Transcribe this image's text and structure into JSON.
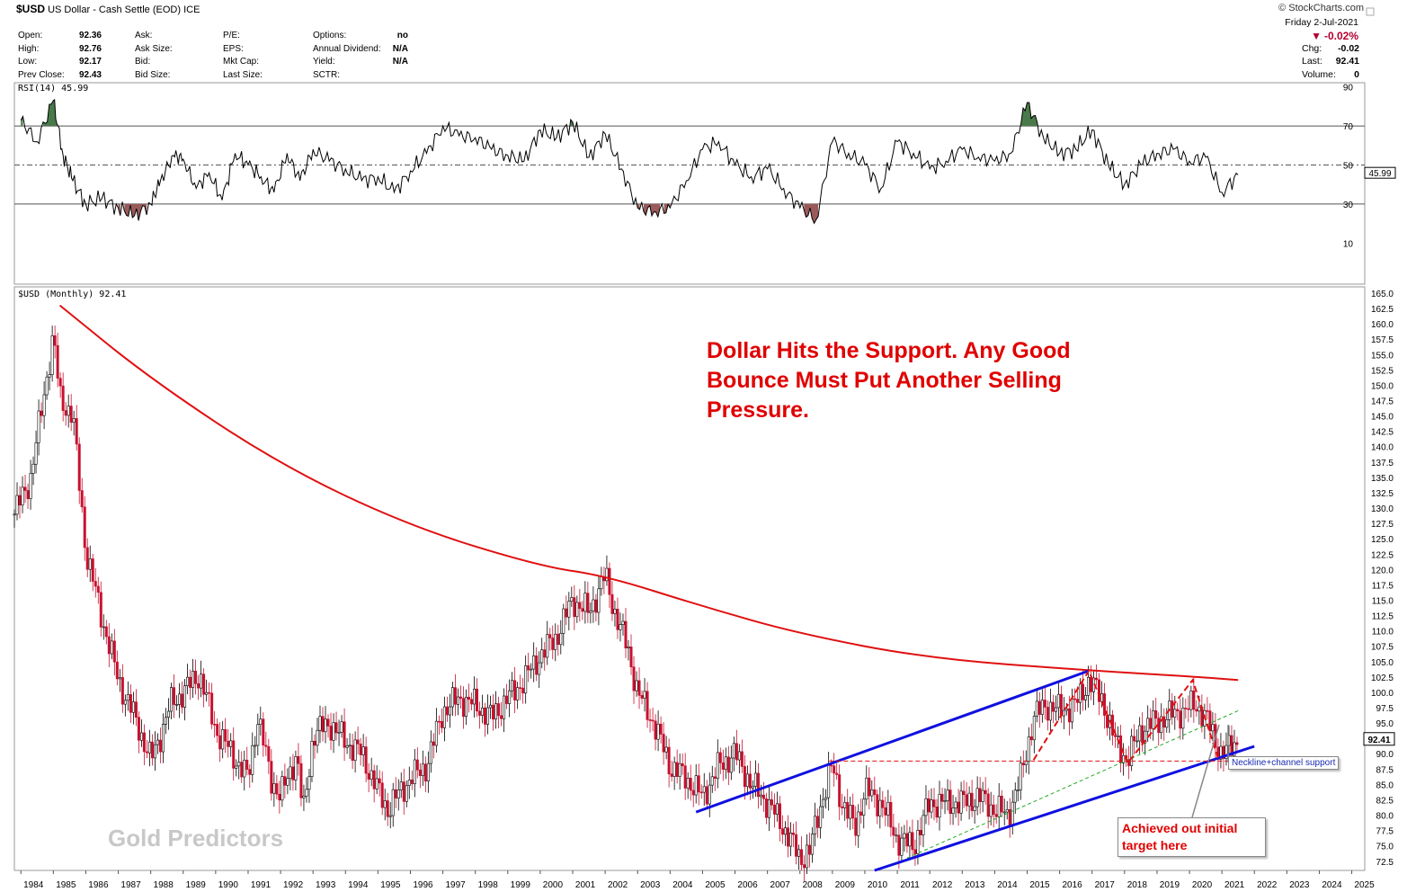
{
  "header": {
    "symbol": "$USD",
    "name": "US Dollar - Cash Settle (EOD)",
    "exchange": "ICE",
    "brand": "© StockCharts.com",
    "date": "Friday   2-Jul-2021"
  },
  "quote": {
    "open_label": "Open:",
    "open": "92.36",
    "high_label": "High:",
    "high": "92.76",
    "low_label": "Low:",
    "low": "92.17",
    "prev_label": "Prev Close:",
    "prev": "92.43",
    "ask_label": "Ask:",
    "asksize_label": "Ask Size:",
    "bid_label": "Bid:",
    "bidsize_label": "Bid Size:",
    "pe_label": "P/E:",
    "eps_label": "EPS:",
    "mktcap_label": "Mkt Cap:",
    "lastsize_label": "Last Size:",
    "options_label": "Options:",
    "options": "no",
    "div_label": "Annual Dividend:",
    "div": "N/A",
    "yield_label": "Yield:",
    "yield": "N/A",
    "sctr_label": "SCTR:",
    "chg_pct": "-0.02%",
    "chg_label": "Chg:",
    "chg": "-0.02",
    "last_label": "Last:",
    "last": "92.41",
    "vol_label": "Volume:",
    "vol": "0"
  },
  "colors": {
    "up": "#000000",
    "down": "#c8102e",
    "trend_red": "#e01010",
    "channel_blue": "#1010e0",
    "dashed_green": "#22aa22",
    "rsi_over": "#4a7a4a",
    "rsi_under": "#9a5a5a"
  },
  "annotations": {
    "headline": [
      "Dollar Hits the Support. Any Good",
      "Bounce Must Put Another Selling",
      "Pressure."
    ],
    "watermark": "Gold Predictors",
    "callout_target": [
      "Achieved out initial",
      "target here"
    ],
    "callout_support": "Neckline+channel support"
  },
  "chart_data": [
    {
      "type": "line",
      "title": "RSI(14) 45.99",
      "ylim": [
        0,
        100
      ],
      "y_ticks": [
        10,
        30,
        50,
        70,
        90
      ],
      "reference_lines": [
        30,
        50,
        70
      ],
      "last_value": "45.99",
      "x": [
        1984.0,
        1984.5,
        1985.0,
        1985.3,
        1985.6,
        1986.0,
        1986.5,
        1987.0,
        1987.5,
        1988.0,
        1988.3,
        1988.7,
        1989.0,
        1989.4,
        1989.8,
        1990.2,
        1990.6,
        1991.0,
        1991.4,
        1991.8,
        1992.2,
        1992.6,
        1993.0,
        1993.5,
        1994.0,
        1994.5,
        1995.0,
        1995.5,
        1996.0,
        1996.5,
        1997.0,
        1997.5,
        1998.0,
        1998.5,
        1999.0,
        1999.5,
        2000.0,
        2000.5,
        2001.0,
        2001.5,
        2002.0,
        2002.5,
        2003.0,
        2003.5,
        2004.0,
        2004.5,
        2005.0,
        2005.5,
        2006.0,
        2006.5,
        2007.0,
        2007.5,
        2008.0,
        2008.5,
        2009.0,
        2009.5,
        2010.0,
        2010.5,
        2011.0,
        2011.5,
        2012.0,
        2012.5,
        2013.0,
        2013.5,
        2014.0,
        2014.5,
        2015.0,
        2015.5,
        2016.0,
        2016.5,
        2017.0,
        2017.5,
        2018.0,
        2018.5,
        2019.0,
        2019.5,
        2020.0,
        2020.5,
        2021.0,
        2021.5
      ],
      "values": [
        73,
        62,
        83,
        55,
        42,
        30,
        33,
        28,
        24,
        30,
        42,
        55,
        53,
        38,
        46,
        32,
        56,
        50,
        44,
        36,
        56,
        42,
        58,
        52,
        48,
        42,
        44,
        36,
        47,
        56,
        70,
        65,
        64,
        58,
        55,
        52,
        68,
        64,
        72,
        54,
        66,
        48,
        28,
        26,
        28,
        42,
        58,
        62,
        50,
        44,
        48,
        38,
        28,
        22,
        62,
        56,
        50,
        38,
        62,
        56,
        48,
        52,
        58,
        54,
        52,
        56,
        82,
        64,
        56,
        58,
        68,
        50,
        40,
        50,
        56,
        58,
        52,
        54,
        36,
        45
      ]
    },
    {
      "type": "bar",
      "title": "$USD (Monthly) 92.41",
      "xlabel": "",
      "ylabel": "",
      "ylim": [
        70.5,
        165.0
      ],
      "xlim": [
        1983.8,
        2025.4
      ],
      "y_ticks": [
        72.5,
        75.0,
        77.5,
        80.0,
        82.5,
        85.0,
        87.5,
        90.0,
        92.5,
        95.0,
        97.5,
        100.0,
        102.5,
        105.0,
        107.5,
        110.0,
        112.5,
        115.0,
        117.5,
        120.0,
        122.5,
        125.0,
        127.5,
        130.0,
        132.5,
        135.0,
        137.5,
        140.0,
        142.5,
        145.0,
        147.5,
        150.0,
        152.5,
        155.0,
        157.5,
        160.0,
        162.5,
        165.0
      ],
      "x_ticks": [
        1984,
        1985,
        1986,
        1987,
        1988,
        1989,
        1990,
        1991,
        1992,
        1993,
        1994,
        1995,
        1996,
        1997,
        1998,
        1999,
        2000,
        2001,
        2002,
        2003,
        2004,
        2005,
        2006,
        2007,
        2008,
        2009,
        2010,
        2011,
        2012,
        2013,
        2014,
        2015,
        2016,
        2017,
        2018,
        2019,
        2020,
        2021,
        2022,
        2023,
        2024,
        2025
      ],
      "last_value": "92.41",
      "price_path": {
        "x": [
          1983.8,
          1984.3,
          1985.0,
          1985.2,
          1985.6,
          1986.0,
          1986.5,
          1987.0,
          1987.5,
          1988.0,
          1988.3,
          1988.6,
          1989.0,
          1989.5,
          1990.0,
          1990.5,
          1991.0,
          1991.3,
          1991.7,
          1992.0,
          1992.5,
          1992.7,
          1993.0,
          1993.5,
          1994.0,
          1994.5,
          1995.0,
          1995.3,
          1996.0,
          1996.5,
          1997.0,
          1997.5,
          1998.0,
          1998.5,
          1999.0,
          1999.5,
          2000.0,
          2000.5,
          2001.0,
          2001.5,
          2002.0,
          2002.3,
          2002.7,
          2003.0,
          2003.5,
          2004.0,
          2004.5,
          2005.0,
          2005.5,
          2006.0,
          2006.5,
          2007.0,
          2007.5,
          2008.0,
          2008.3,
          2008.6,
          2009.0,
          2009.3,
          2009.7,
          2010.0,
          2010.5,
          2011.0,
          2011.5,
          2012.0,
          2012.5,
          2013.0,
          2013.5,
          2014.0,
          2014.4,
          2014.8,
          2015.2,
          2015.6,
          2016.0,
          2016.5,
          2016.9,
          2017.3,
          2017.7,
          2018.1,
          2018.5,
          2018.9,
          2019.3,
          2019.8,
          2020.2,
          2020.5,
          2020.8,
          2021.0,
          2021.3,
          2021.5
        ],
        "y": [
          129,
          135,
          158,
          148,
          145,
          123,
          112,
          102,
          96,
          89,
          93,
          98,
          100,
          103,
          94,
          90,
          86,
          96,
          86,
          83,
          90,
          80,
          93,
          95,
          92,
          90,
          84,
          81,
          86,
          88,
          97,
          99,
          98,
          96,
          99,
          102,
          106,
          109,
          115,
          113,
          119,
          113,
          107,
          100,
          95,
          88,
          86,
          83,
          88,
          90,
          85,
          82,
          78,
          73,
          74,
          81,
          88,
          82,
          78,
          84,
          82,
          76,
          75,
          82,
          82,
          82,
          83,
          81,
          80,
          86,
          96,
          98,
          97,
          98,
          102,
          99,
          92,
          89,
          94,
          95,
          96,
          97,
          98,
          96,
          92,
          90,
          91,
          92.41
        ]
      },
      "lines": {
        "resistance_curve": {
          "x": [
            1985.2,
            1988,
            1992,
            1996,
            2000,
            2002,
            2005,
            2008,
            2012,
            2016.8,
            2020.3,
            2021.5
          ],
          "y": [
            163,
            151,
            137,
            127,
            120.5,
            119,
            114,
            109.5,
            105.5,
            103.6,
            102.5,
            102.0
          ]
        },
        "channel_lower": {
          "x": [
            2010.3,
            2022.0
          ],
          "y": [
            71,
            91.2
          ]
        },
        "channel_upper": {
          "x": [
            2004.8,
            2016.9
          ],
          "y": [
            80.5,
            103.5
          ]
        },
        "neckline": {
          "x": [
            2008.9,
            2021.2
          ],
          "y": [
            88.8,
            88.8
          ]
        },
        "green_dashed": {
          "x": [
            2011.3,
            2021.5
          ],
          "y": [
            73,
            97
          ]
        },
        "zigzag": {
          "x": [
            2015.2,
            2016.9,
            2018.1,
            2020.1,
            2020.9
          ],
          "y": [
            89,
            103.5,
            88.5,
            102,
            89
          ]
        }
      }
    }
  ]
}
